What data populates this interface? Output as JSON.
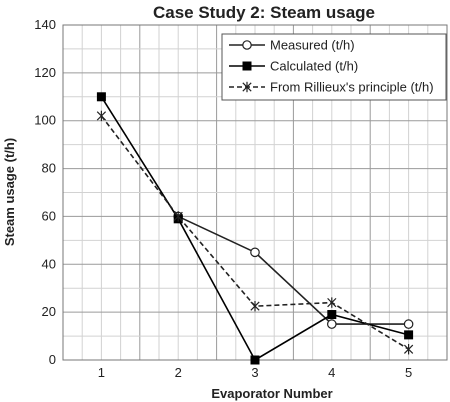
{
  "chart_data": {
    "type": "line",
    "title": "Case Study 2: Steam usage",
    "xlabel": "Evaporator Number",
    "ylabel": "Steam usage (t/h)",
    "x": [
      1,
      2,
      3,
      4,
      5
    ],
    "xlim": [
      0.5,
      5.5
    ],
    "ylim": [
      0,
      140
    ],
    "yticks": [
      0,
      20,
      40,
      60,
      80,
      100,
      120,
      140
    ],
    "grid": true,
    "legend_position": "top-right",
    "series": [
      {
        "name": "Measured (t/h)",
        "values": [
          null,
          60,
          45,
          15,
          15
        ],
        "marker": "open-circle",
        "line": "solid",
        "color": "#222222"
      },
      {
        "name": "Calculated (t/h)",
        "values": [
          110,
          59,
          0,
          19,
          10.5
        ],
        "marker": "filled-square",
        "line": "solid",
        "color": "#000000"
      },
      {
        "name": "From Rillieux's principle (t/h)",
        "values": [
          102,
          60,
          22.5,
          24,
          4.5
        ],
        "marker": "star",
        "line": "dashed",
        "color": "#222222"
      }
    ]
  }
}
